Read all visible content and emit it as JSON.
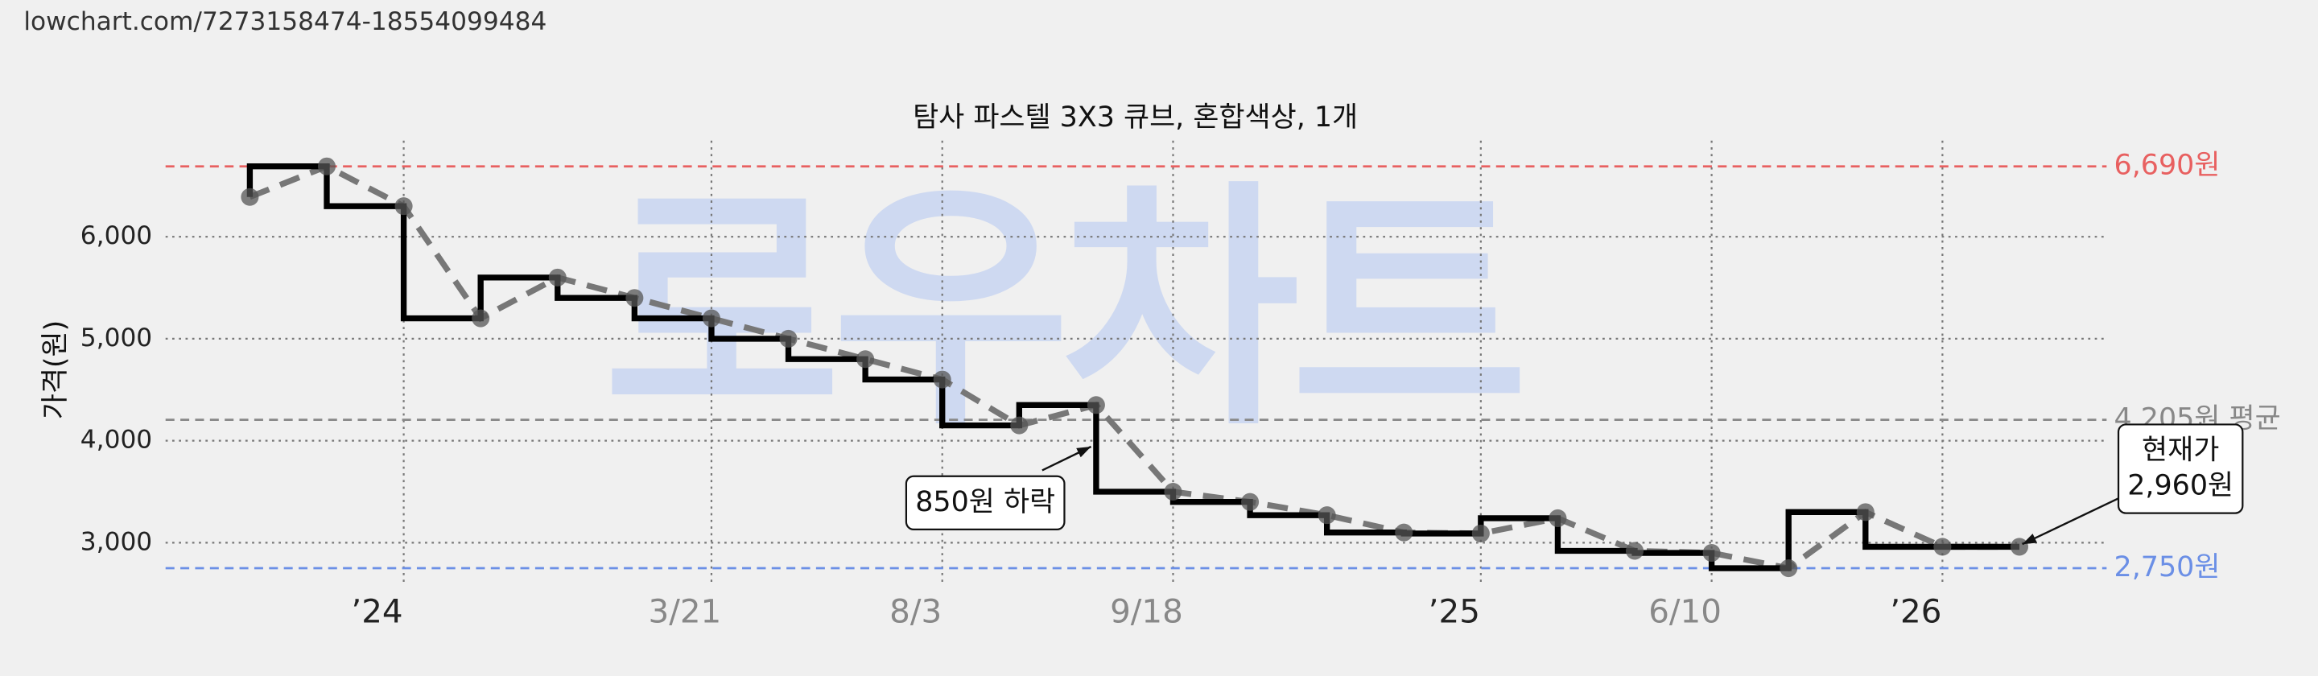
{
  "url": "lowchart.com/7273158474-18554099484",
  "chart_data": {
    "type": "step",
    "title": "탐사 파스텔 3X3 큐브, 혼합색상, 1개",
    "watermark": "로우차트",
    "ylabel": "가격(원)",
    "categories": [
      null,
      null,
      "’24",
      null,
      null,
      null,
      "3/21",
      null,
      null,
      "8/3",
      null,
      null,
      "9/18",
      null,
      null,
      null,
      "’25",
      null,
      null,
      "6/10",
      null,
      null,
      "’26",
      null
    ],
    "series": [
      {
        "color": "#000000",
        "values": [
          6390,
          6690,
          6300,
          5200,
          5600,
          5400,
          5200,
          5000,
          4800,
          4600,
          4150,
          4350,
          3500,
          3400,
          3270,
          3100,
          3090,
          3240,
          2920,
          2900,
          2750,
          3300,
          2960,
          2960
        ]
      }
    ],
    "trend_color": "#777777",
    "ylim": [
      2594,
      6942
    ],
    "yticks": [
      {
        "value": 3000,
        "label": "3,000"
      },
      {
        "value": 4000,
        "label": "4,000"
      },
      {
        "value": 5000,
        "label": "5,000"
      },
      {
        "value": 6000,
        "label": "6,000"
      }
    ],
    "grid": true,
    "reference_lines": [
      {
        "value": 6690,
        "label": "6,690원",
        "color": "#e86060"
      },
      {
        "value": 4205,
        "label": "4,205원 평균",
        "color": "#888888"
      },
      {
        "value": 2750,
        "label": "2,750원",
        "color": "#6b8fe6"
      }
    ],
    "annotations": [
      {
        "lines": [
          "850원 하락"
        ]
      },
      {
        "lines": [
          "현재가",
          "2,960원"
        ]
      }
    ]
  }
}
